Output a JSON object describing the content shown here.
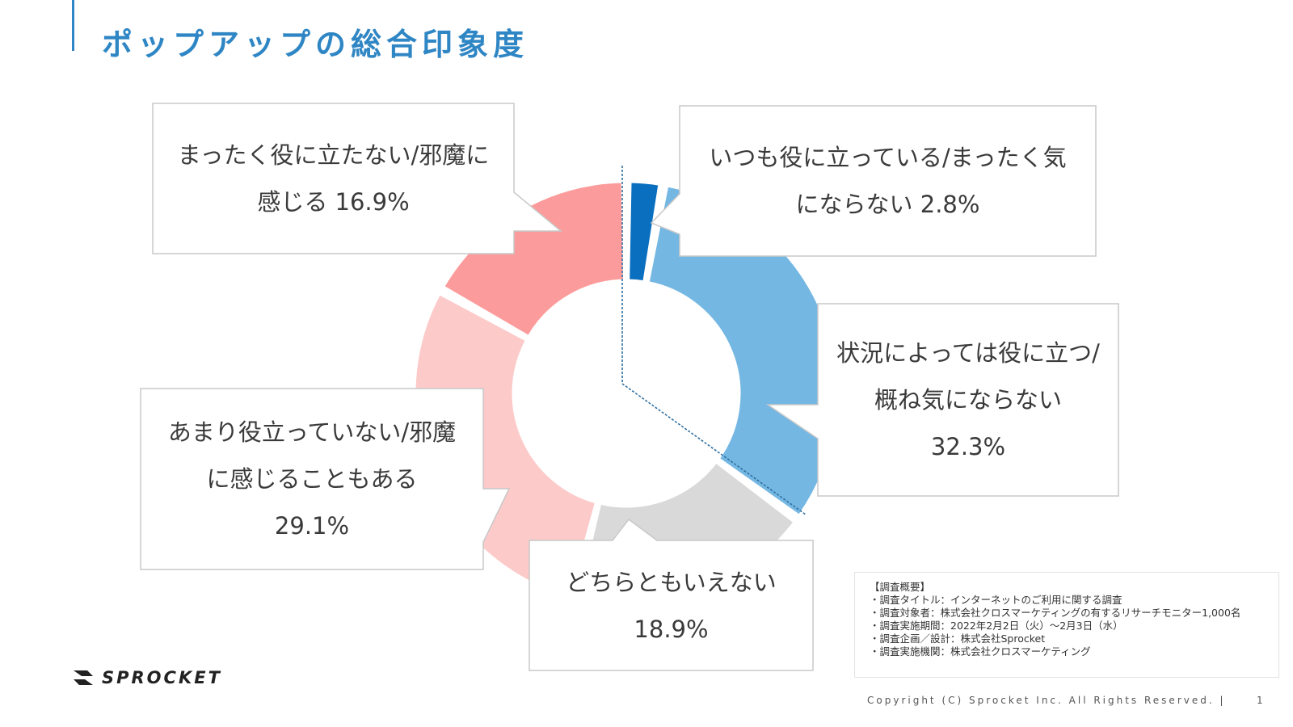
{
  "page": {
    "title": "ポップアップの総合印象度",
    "accent_color": "#2f86c4"
  },
  "chart_data": {
    "type": "pie",
    "variant": "donut",
    "title": "",
    "series": [
      {
        "label_lines": [
          "いつも役に立っている/まったく気",
          "にならない 2.8%"
        ],
        "value": 2.8,
        "color": "#0a6fbf"
      },
      {
        "label_lines": [
          "状況によっては役に立つ/",
          "概ね気にならない",
          "32.3%"
        ],
        "value": 32.3,
        "color": "#74b7e3"
      },
      {
        "label_lines": [
          "どちらともいえない",
          "18.9%"
        ],
        "value": 18.9,
        "color": "#d9d9d9"
      },
      {
        "label_lines": [
          "あまり役立っていない/邪魔",
          "に感じることもある",
          "29.1%"
        ],
        "value": 29.1,
        "color": "#fdcaca"
      },
      {
        "label_lines": [
          "まったく役に立たない/邪魔に",
          "感じる 16.9%"
        ],
        "value": 16.9,
        "color": "#fc9b9b"
      }
    ],
    "positive_group_divider": true
  },
  "summary": {
    "heading": "【調査概要】",
    "lines": [
      "・調査タイトル：インターネットのご利用に関する調査",
      "・調査対象者：株式会社クロスマーケティングの有するリサーチモニター1,000名",
      "・調査実施期間：2022年2月2日（火）～2月3日（水）",
      "・調査企画／設計：株式会社Sprocket",
      "・調査実施機関：株式会社クロスマーケティング"
    ]
  },
  "footer": {
    "logo_text": "SPROCKET",
    "logo_icon": "sprocket-logo-icon",
    "copyright": "Copyright (C) Sprocket Inc. All Rights Reserved. |",
    "page_number": "1"
  }
}
